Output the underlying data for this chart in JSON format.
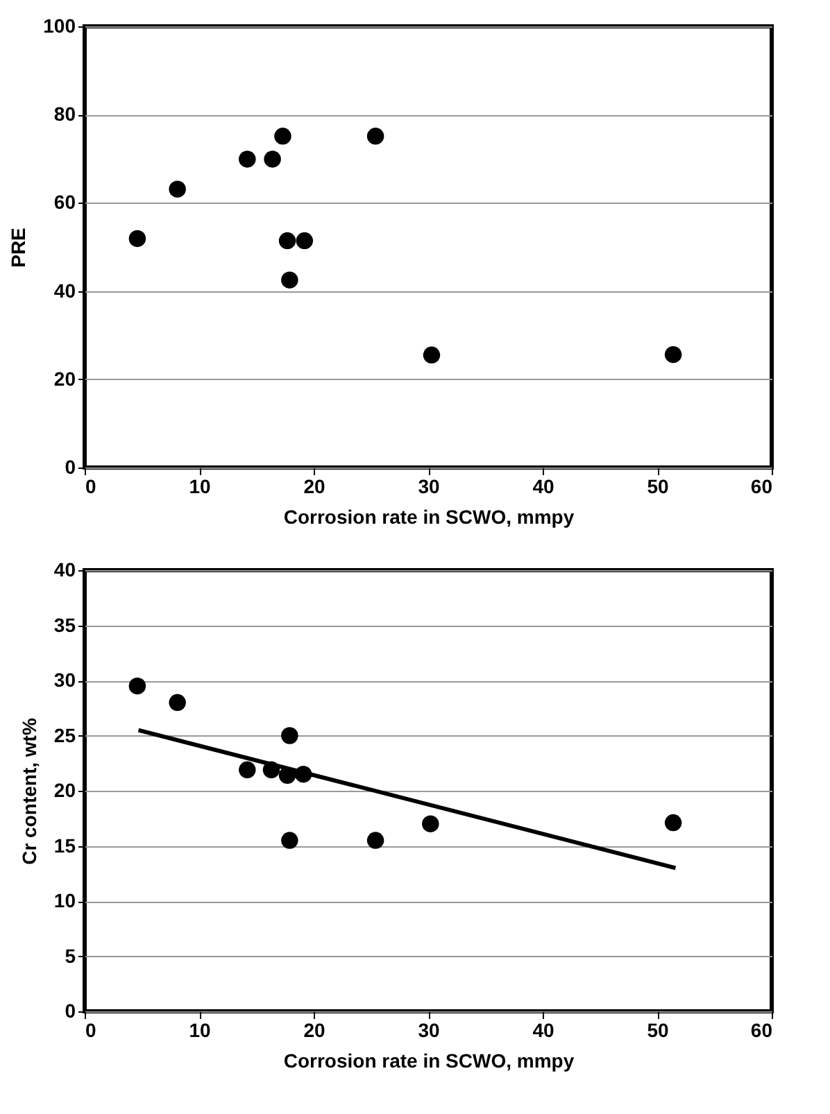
{
  "chart_data": [
    {
      "type": "scatter",
      "xlabel": "Corrosion rate in SCWO, mmpy",
      "ylabel": "PRE",
      "xlim": [
        0,
        60
      ],
      "xticks": [
        0,
        10,
        20,
        30,
        40,
        50,
        60
      ],
      "ylim": [
        0,
        100
      ],
      "yticks": [
        0,
        20,
        40,
        60,
        80,
        100
      ],
      "grid": "y",
      "marker": "circle",
      "legend": false,
      "series": [
        {
          "color": "#000000",
          "x": [
            4.6,
            8.1,
            14.2,
            16.4,
            17.3,
            17.7,
            19.2,
            17.9,
            25.4,
            30.3,
            51.4
          ],
          "values": [
            51.9,
            63.1,
            69.9,
            69.9,
            75.1,
            51.4,
            51.4,
            42.5,
            75.1,
            25.5,
            25.6
          ]
        }
      ]
    },
    {
      "type": "scatter",
      "xlabel": "Corrosion rate in SCWO, mmpy",
      "ylabel": "Cr content, wt%",
      "xlim": [
        0,
        60
      ],
      "xticks": [
        0,
        10,
        20,
        30,
        40,
        50,
        60
      ],
      "ylim": [
        0,
        40
      ],
      "yticks": [
        0,
        5,
        10,
        15,
        20,
        25,
        30,
        35,
        40
      ],
      "grid": "y",
      "marker": "circle",
      "legend": false,
      "series": [
        {
          "color": "#000000",
          "x": [
            4.6,
            8.1,
            14.2,
            16.3,
            17.7,
            19.1,
            17.9,
            17.9,
            25.4,
            30.2,
            51.4
          ],
          "values": [
            29.5,
            28.0,
            21.9,
            21.9,
            21.4,
            21.5,
            25.0,
            15.5,
            15.5,
            17.0,
            17.1
          ]
        },
        {
          "type": "line",
          "color": "#000000",
          "line_style": "solid",
          "marker": "none",
          "x": [
            4.7,
            51.6
          ],
          "values": [
            25.5,
            13.0
          ]
        }
      ]
    }
  ]
}
